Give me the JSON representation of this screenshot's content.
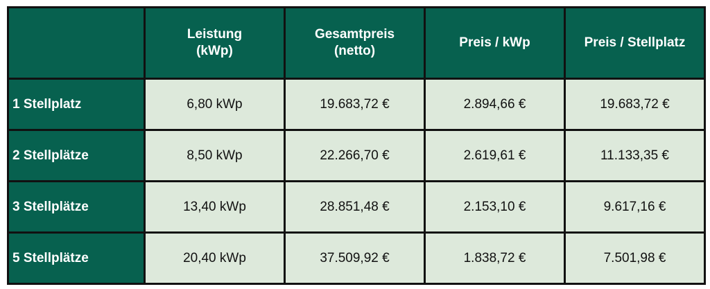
{
  "table": {
    "headers": [
      {
        "lines": [
          "",
          ""
        ]
      },
      {
        "lines": [
          "Leistung",
          "(kWp)"
        ]
      },
      {
        "lines": [
          "Gesamtpreis",
          "(netto)"
        ]
      },
      {
        "lines": [
          "Preis / kWp",
          ""
        ]
      },
      {
        "lines": [
          "Preis / Stellplatz",
          ""
        ]
      }
    ],
    "rows": [
      {
        "label": "1 Stellplatz",
        "cells": [
          "6,80 kWp",
          "19.683,72 €",
          "2.894,66 €",
          "19.683,72 €"
        ]
      },
      {
        "label": "2 Stellplätze",
        "cells": [
          "8,50 kWp",
          "22.266,70 €",
          "2.619,61 €",
          "11.133,35 €"
        ]
      },
      {
        "label": "3 Stellplätze",
        "cells": [
          "13,40 kWp",
          "28.851,48 €",
          "2.153,10 €",
          "9.617,16 €"
        ]
      },
      {
        "label": "5 Stellplätze",
        "cells": [
          "20,40 kWp",
          "37.509,92 €",
          "1.838,72 €",
          "7.501,98 €"
        ]
      }
    ]
  },
  "colors": {
    "header_bg": "#07614f",
    "cell_bg": "#dde9db",
    "border": "#111111"
  }
}
